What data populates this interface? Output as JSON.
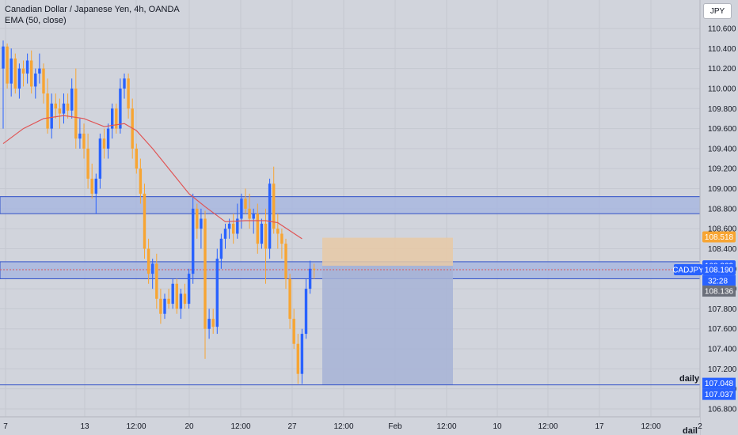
{
  "legend": {
    "symbol_title": "Canadian Dollar / Japanese Yen, 4h, OANDA",
    "indicator": "EMA (50, close)"
  },
  "currency_button": "JPY",
  "right_labels": {
    "daily": "daily",
    "daily_partial": "dail"
  },
  "colors": {
    "background": "#d1d4dc",
    "up_candle": "#2962ff",
    "down_candle": "#f7a533",
    "ema_line": "#e05555",
    "zone_fill": "#a3b4e0",
    "zone_border": "#3050c8",
    "target_fill": "#e8c9a6",
    "stop_fill": "#a7b3d6"
  },
  "chart_data": {
    "type": "candlestick",
    "symbol": "CADJPY",
    "y_ticks": [
      "110.600",
      "110.400",
      "110.200",
      "110.000",
      "109.800",
      "109.600",
      "109.400",
      "109.200",
      "109.000",
      "108.800",
      "108.600",
      "108.400",
      "108.200",
      "108.000",
      "107.800",
      "107.600",
      "107.400",
      "107.200",
      "107.000",
      "106.800"
    ],
    "x_ticks": [
      "7",
      "13",
      "12:00",
      "20",
      "12:00",
      "27",
      "12:00",
      "Feb",
      "12:00",
      "10",
      "12:00",
      "17",
      "12:00",
      "2"
    ],
    "price_labels": [
      {
        "text": "108.518",
        "value": 108.518,
        "color": "#f7a533"
      },
      {
        "text": "108.229",
        "value": 108.229,
        "color": "#2962ff"
      },
      {
        "text": "CADJPY",
        "value": 108.19,
        "color": "#2962ff"
      },
      {
        "text": "108.190",
        "value": 108.19,
        "color": "#2962ff"
      },
      {
        "text": "32:28",
        "value": 108.13,
        "color": "#2962ff"
      },
      {
        "text": "108.136",
        "value": 108.136,
        "color": "#6b6f7a"
      },
      {
        "text": "107.048",
        "value": 107.048,
        "color": "#2962ff"
      },
      {
        "text": "107.037",
        "value": 107.037,
        "color": "#2962ff"
      }
    ],
    "zones": [
      {
        "top": 108.92,
        "bottom": 108.75
      },
      {
        "top": 108.27,
        "bottom": 108.1
      }
    ],
    "horizontal_line": 107.04,
    "position": {
      "entry": 108.23,
      "target": 108.51,
      "stop": 107.04
    },
    "candles": [
      {
        "o": 110.2,
        "h": 110.48,
        "l": 109.6,
        "c": 110.42
      },
      {
        "o": 110.42,
        "h": 110.45,
        "l": 110.0,
        "c": 110.05
      },
      {
        "o": 110.05,
        "h": 110.4,
        "l": 109.92,
        "c": 110.3
      },
      {
        "o": 110.3,
        "h": 110.35,
        "l": 109.95,
        "c": 110.0
      },
      {
        "o": 110.0,
        "h": 110.25,
        "l": 109.9,
        "c": 110.2
      },
      {
        "o": 110.2,
        "h": 110.28,
        "l": 110.02,
        "c": 110.15
      },
      {
        "o": 110.15,
        "h": 110.35,
        "l": 110.05,
        "c": 110.28
      },
      {
        "o": 110.28,
        "h": 110.38,
        "l": 109.95,
        "c": 110.02
      },
      {
        "o": 110.02,
        "h": 110.2,
        "l": 109.9,
        "c": 110.15
      },
      {
        "o": 110.15,
        "h": 110.35,
        "l": 110.05,
        "c": 110.2
      },
      {
        "o": 110.2,
        "h": 110.25,
        "l": 109.85,
        "c": 109.95
      },
      {
        "o": 109.95,
        "h": 110.1,
        "l": 109.55,
        "c": 109.6
      },
      {
        "o": 109.6,
        "h": 109.95,
        "l": 109.5,
        "c": 109.85
      },
      {
        "o": 109.85,
        "h": 109.95,
        "l": 109.7,
        "c": 109.8
      },
      {
        "o": 109.8,
        "h": 109.9,
        "l": 109.6,
        "c": 109.75
      },
      {
        "o": 109.75,
        "h": 109.95,
        "l": 109.65,
        "c": 109.85
      },
      {
        "o": 109.85,
        "h": 109.95,
        "l": 109.7,
        "c": 109.78
      },
      {
        "o": 109.78,
        "h": 110.1,
        "l": 109.7,
        "c": 110.0
      },
      {
        "o": 110.0,
        "h": 110.2,
        "l": 109.4,
        "c": 109.5
      },
      {
        "o": 109.5,
        "h": 109.7,
        "l": 109.4,
        "c": 109.55
      },
      {
        "o": 109.55,
        "h": 109.65,
        "l": 109.3,
        "c": 109.4
      },
      {
        "o": 109.4,
        "h": 109.55,
        "l": 109.0,
        "c": 109.1
      },
      {
        "o": 109.1,
        "h": 109.25,
        "l": 108.9,
        "c": 108.95
      },
      {
        "o": 108.95,
        "h": 109.15,
        "l": 108.75,
        "c": 109.1
      },
      {
        "o": 109.1,
        "h": 109.55,
        "l": 109.0,
        "c": 109.5
      },
      {
        "o": 109.5,
        "h": 109.6,
        "l": 109.3,
        "c": 109.4
      },
      {
        "o": 109.4,
        "h": 109.65,
        "l": 109.3,
        "c": 109.6
      },
      {
        "o": 109.6,
        "h": 109.85,
        "l": 109.5,
        "c": 109.8
      },
      {
        "o": 109.8,
        "h": 109.85,
        "l": 109.55,
        "c": 109.6
      },
      {
        "o": 109.6,
        "h": 110.1,
        "l": 109.55,
        "c": 110.0
      },
      {
        "o": 110.0,
        "h": 110.15,
        "l": 109.9,
        "c": 110.1
      },
      {
        "o": 110.1,
        "h": 110.15,
        "l": 109.7,
        "c": 109.8
      },
      {
        "o": 109.8,
        "h": 109.9,
        "l": 109.3,
        "c": 109.4
      },
      {
        "o": 109.4,
        "h": 109.45,
        "l": 109.15,
        "c": 109.2
      },
      {
        "o": 109.2,
        "h": 109.3,
        "l": 108.85,
        "c": 108.95
      },
      {
        "o": 108.95,
        "h": 109.05,
        "l": 108.3,
        "c": 108.4
      },
      {
        "o": 108.4,
        "h": 108.5,
        "l": 108.05,
        "c": 108.15
      },
      {
        "o": 108.15,
        "h": 108.3,
        "l": 108.0,
        "c": 108.25
      },
      {
        "o": 108.25,
        "h": 108.35,
        "l": 107.8,
        "c": 107.9
      },
      {
        "o": 107.9,
        "h": 108.0,
        "l": 107.65,
        "c": 107.75
      },
      {
        "o": 107.75,
        "h": 107.95,
        "l": 107.7,
        "c": 107.9
      },
      {
        "o": 107.9,
        "h": 108.0,
        "l": 107.8,
        "c": 107.85
      },
      {
        "o": 107.85,
        "h": 108.1,
        "l": 107.8,
        "c": 108.05
      },
      {
        "o": 108.05,
        "h": 108.1,
        "l": 107.75,
        "c": 107.8
      },
      {
        "o": 107.8,
        "h": 108.0,
        "l": 107.7,
        "c": 107.95
      },
      {
        "o": 107.95,
        "h": 108.05,
        "l": 107.8,
        "c": 107.85
      },
      {
        "o": 107.85,
        "h": 108.2,
        "l": 107.8,
        "c": 108.15
      },
      {
        "o": 108.15,
        "h": 108.95,
        "l": 108.05,
        "c": 108.8
      },
      {
        "o": 108.8,
        "h": 108.85,
        "l": 108.5,
        "c": 108.6
      },
      {
        "o": 108.6,
        "h": 108.8,
        "l": 108.4,
        "c": 108.7
      },
      {
        "o": 108.7,
        "h": 108.78,
        "l": 107.3,
        "c": 107.6
      },
      {
        "o": 107.6,
        "h": 107.8,
        "l": 107.5,
        "c": 107.7
      },
      {
        "o": 107.7,
        "h": 107.8,
        "l": 107.55,
        "c": 107.62
      },
      {
        "o": 107.62,
        "h": 108.4,
        "l": 107.55,
        "c": 108.3
      },
      {
        "o": 108.3,
        "h": 108.55,
        "l": 108.2,
        "c": 108.5
      },
      {
        "o": 108.5,
        "h": 108.65,
        "l": 108.4,
        "c": 108.6
      },
      {
        "o": 108.6,
        "h": 108.7,
        "l": 108.5,
        "c": 108.65
      },
      {
        "o": 108.65,
        "h": 108.75,
        "l": 108.45,
        "c": 108.55
      },
      {
        "o": 108.55,
        "h": 108.85,
        "l": 108.5,
        "c": 108.7
      },
      {
        "o": 108.7,
        "h": 108.95,
        "l": 108.6,
        "c": 108.9
      },
      {
        "o": 108.9,
        "h": 109.0,
        "l": 108.75,
        "c": 108.8
      },
      {
        "o": 108.8,
        "h": 108.95,
        "l": 108.6,
        "c": 108.7
      },
      {
        "o": 108.7,
        "h": 108.8,
        "l": 108.55,
        "c": 108.75
      },
      {
        "o": 108.75,
        "h": 108.85,
        "l": 108.35,
        "c": 108.45
      },
      {
        "o": 108.45,
        "h": 108.7,
        "l": 108.4,
        "c": 108.65
      },
      {
        "o": 108.65,
        "h": 108.8,
        "l": 108.05,
        "c": 108.4
      },
      {
        "o": 108.4,
        "h": 109.1,
        "l": 108.3,
        "c": 109.05
      },
      {
        "o": 109.05,
        "h": 109.22,
        "l": 108.55,
        "c": 108.6
      },
      {
        "o": 108.6,
        "h": 108.75,
        "l": 108.4,
        "c": 108.55
      },
      {
        "o": 108.55,
        "h": 108.6,
        "l": 108.3,
        "c": 108.45
      },
      {
        "o": 108.45,
        "h": 108.5,
        "l": 108.0,
        "c": 108.1
      },
      {
        "o": 108.1,
        "h": 108.15,
        "l": 107.6,
        "c": 107.7
      },
      {
        "o": 107.7,
        "h": 107.8,
        "l": 107.4,
        "c": 107.45
      },
      {
        "o": 107.45,
        "h": 107.55,
        "l": 107.05,
        "c": 107.15
      },
      {
        "o": 107.15,
        "h": 107.6,
        "l": 107.05,
        "c": 107.55
      },
      {
        "o": 107.55,
        "h": 108.1,
        "l": 107.5,
        "c": 108.0
      },
      {
        "o": 108.0,
        "h": 108.28,
        "l": 107.95,
        "c": 108.2
      },
      {
        "o": 108.2,
        "h": 108.25,
        "l": 108.1,
        "c": 108.19
      }
    ],
    "ema": [
      {
        "i": 0,
        "v": 109.45
      },
      {
        "i": 5,
        "v": 109.6
      },
      {
        "i": 10,
        "v": 109.7
      },
      {
        "i": 15,
        "v": 109.73
      },
      {
        "i": 20,
        "v": 109.7
      },
      {
        "i": 25,
        "v": 109.62
      },
      {
        "i": 30,
        "v": 109.65
      },
      {
        "i": 33,
        "v": 109.58
      },
      {
        "i": 37,
        "v": 109.4
      },
      {
        "i": 42,
        "v": 109.15
      },
      {
        "i": 46,
        "v": 108.95
      },
      {
        "i": 50,
        "v": 108.82
      },
      {
        "i": 55,
        "v": 108.67
      },
      {
        "i": 60,
        "v": 108.68
      },
      {
        "i": 65,
        "v": 108.68
      },
      {
        "i": 68,
        "v": 108.66
      },
      {
        "i": 71,
        "v": 108.58
      },
      {
        "i": 74,
        "v": 108.5
      }
    ]
  }
}
